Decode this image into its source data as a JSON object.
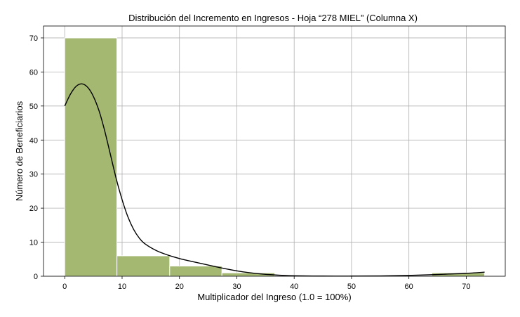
{
  "chart_data": {
    "type": "bar",
    "title": "Distribución del Incremento en Ingresos - Hoja “278 MIEL” (Columna X)",
    "xlabel": "Multiplicador del Ingreso (1.0 = 100%)",
    "ylabel": "Número de Beneficiarios",
    "xlim": [
      -3.7,
      76.8
    ],
    "ylim": [
      0,
      73.5
    ],
    "xticks": [
      0,
      10,
      20,
      30,
      40,
      50,
      60,
      70
    ],
    "yticks": [
      0,
      10,
      20,
      30,
      40,
      50,
      60,
      70
    ],
    "grid": true,
    "bar_color": "#a4b872",
    "curve_color": "#000000",
    "bins": [
      {
        "x0": 0.0,
        "x1": 9.1,
        "count": 70
      },
      {
        "x0": 9.1,
        "x1": 18.3,
        "count": 6
      },
      {
        "x0": 18.3,
        "x1": 27.4,
        "count": 3
      },
      {
        "x0": 27.4,
        "x1": 36.6,
        "count": 1
      },
      {
        "x0": 36.6,
        "x1": 45.7,
        "count": 0
      },
      {
        "x0": 45.7,
        "x1": 54.9,
        "count": 0
      },
      {
        "x0": 54.9,
        "x1": 64.0,
        "count": 0
      },
      {
        "x0": 64.0,
        "x1": 73.2,
        "count": 1
      }
    ],
    "kde": [
      [
        0,
        50
      ],
      [
        1,
        53.5
      ],
      [
        2,
        55.8
      ],
      [
        3,
        56.5
      ],
      [
        4,
        55.5
      ],
      [
        5,
        52.8
      ],
      [
        6,
        48.5
      ],
      [
        7,
        42.5
      ],
      [
        8,
        35.5
      ],
      [
        9,
        28.5
      ],
      [
        10,
        22.5
      ],
      [
        11,
        17.5
      ],
      [
        12,
        13.8
      ],
      [
        13,
        11.2
      ],
      [
        14,
        9.5
      ],
      [
        16,
        7.5
      ],
      [
        18,
        6.2
      ],
      [
        20,
        5.2
      ],
      [
        22,
        4.4
      ],
      [
        25,
        3.3
      ],
      [
        28,
        2.2
      ],
      [
        31,
        1.3
      ],
      [
        34,
        0.7
      ],
      [
        37,
        0.35
      ],
      [
        40,
        0.15
      ],
      [
        45,
        0.05
      ],
      [
        50,
        0.05
      ],
      [
        55,
        0.1
      ],
      [
        60,
        0.25
      ],
      [
        64,
        0.45
      ],
      [
        67,
        0.65
      ],
      [
        70,
        0.85
      ],
      [
        73.2,
        1.2
      ]
    ]
  }
}
